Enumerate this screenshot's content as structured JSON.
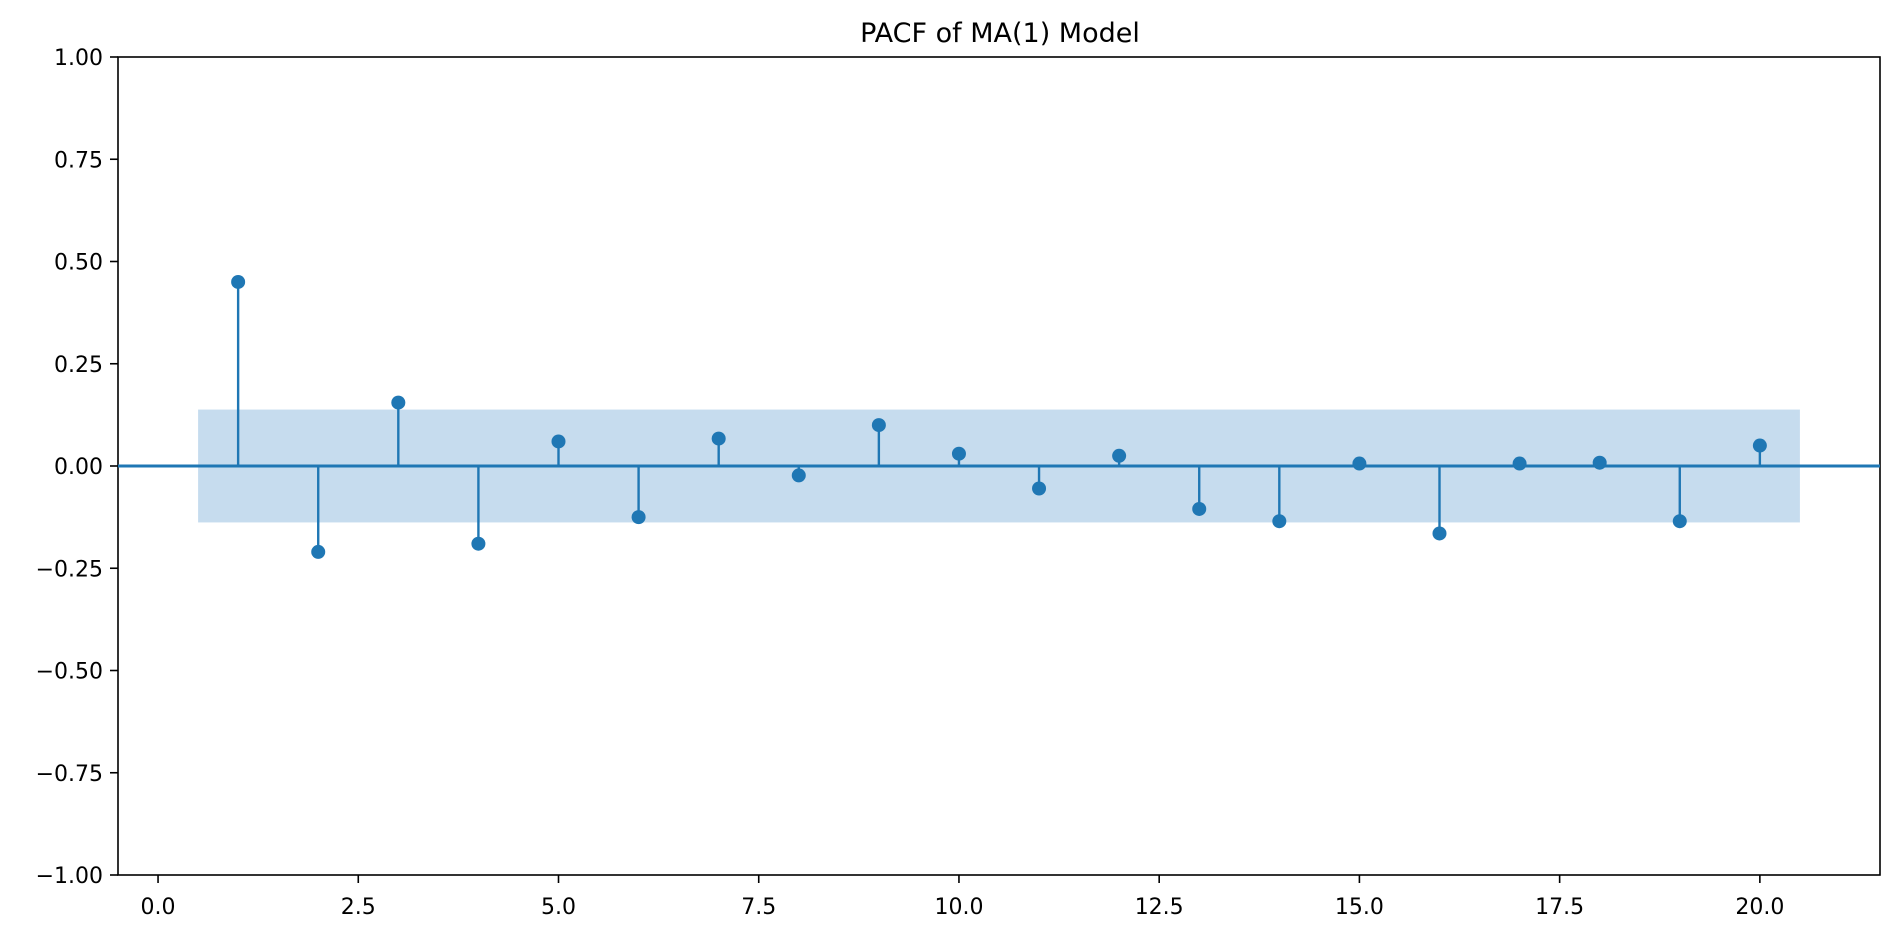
{
  "chart_data": {
    "type": "scatter",
    "style": "stem",
    "title": "PACF of MA(1) Model",
    "xlabel": "",
    "ylabel": "",
    "xlim": [
      -0.5,
      21.5
    ],
    "ylim": [
      -1.0,
      1.0
    ],
    "grid": false,
    "x": [
      1,
      2,
      3,
      4,
      5,
      6,
      7,
      8,
      9,
      10,
      11,
      12,
      13,
      14,
      15,
      16,
      17,
      18,
      19,
      20
    ],
    "values": [
      0.45,
      -0.21,
      0.155,
      -0.19,
      0.06,
      -0.125,
      0.067,
      -0.023,
      0.1,
      0.03,
      -0.055,
      0.025,
      -0.105,
      -0.135,
      0.006,
      -0.165,
      0.006,
      0.008,
      -0.135,
      0.05
    ],
    "confidence_band": {
      "x_range": [
        0.5,
        20.5
      ],
      "y_range": [
        -0.138,
        0.138
      ]
    },
    "x_ticks": [
      "0.0",
      "2.5",
      "5.0",
      "7.5",
      "10.0",
      "12.5",
      "15.0",
      "17.5",
      "20.0"
    ],
    "y_ticks": [
      "−1.00",
      "−0.75",
      "−0.50",
      "−0.25",
      "0.00",
      "0.25",
      "0.50",
      "0.75",
      "1.00"
    ],
    "colors": {
      "marker": "#1f77b4",
      "band": "#c6dcee",
      "axis": "#000000"
    }
  }
}
